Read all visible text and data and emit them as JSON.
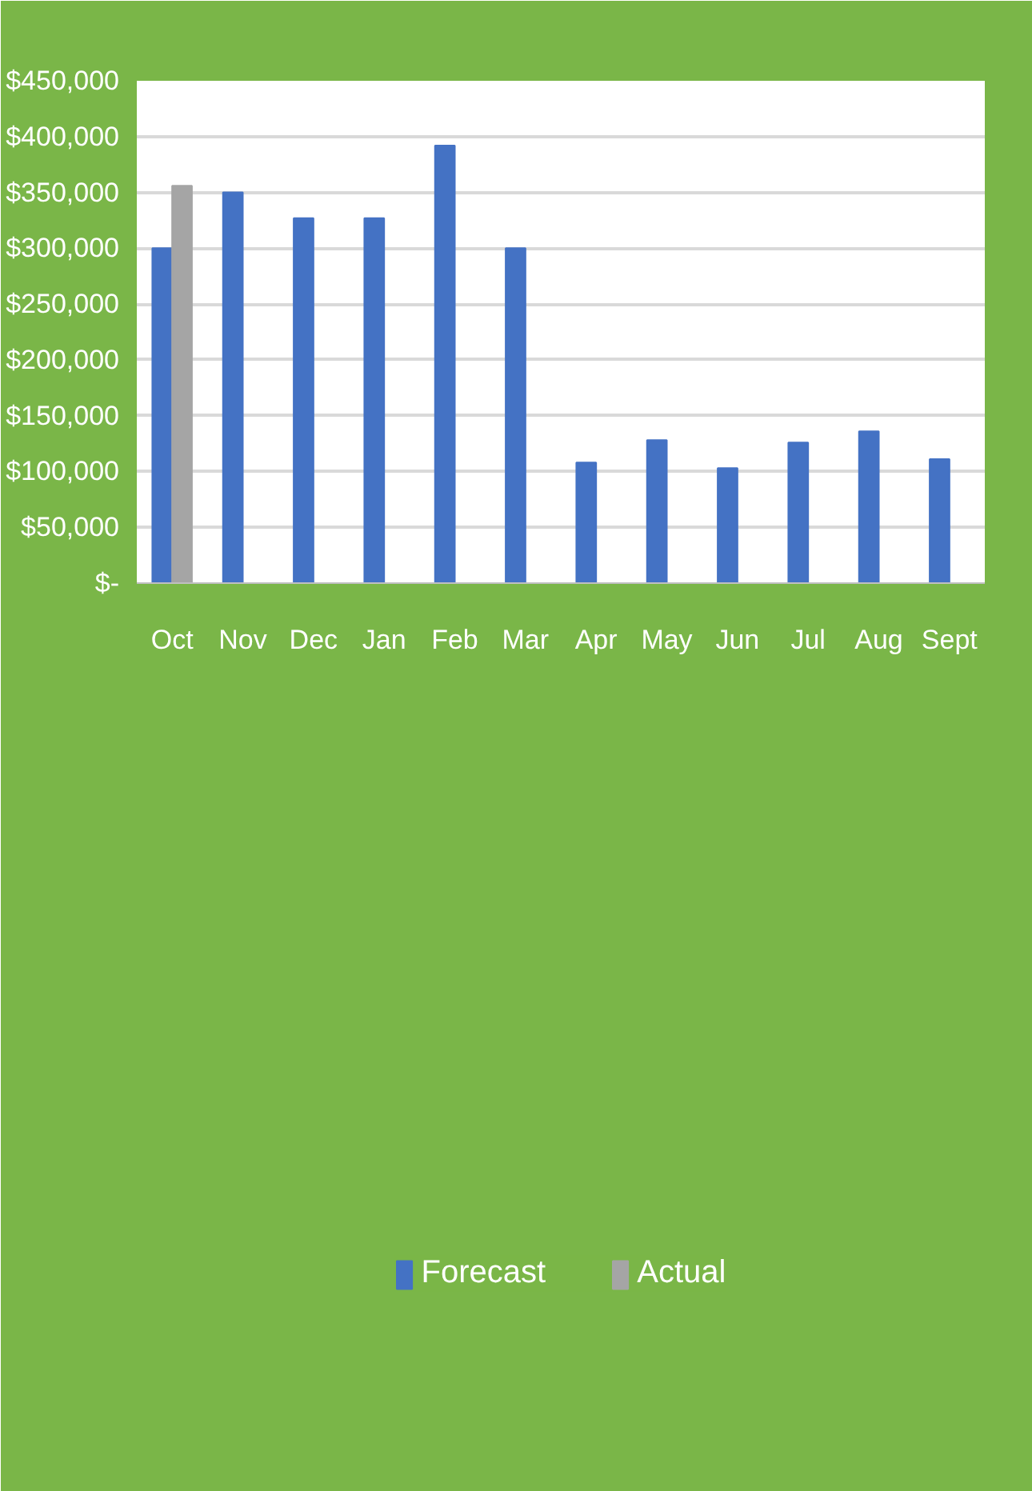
{
  "chart_data": {
    "type": "bar",
    "categories": [
      "Oct",
      "Nov",
      "Dec",
      "Jan",
      "Feb",
      "Mar",
      "Apr",
      "May",
      "Jun",
      "Jul",
      "Aug",
      "Sept"
    ],
    "series": [
      {
        "name": "Forecast",
        "color": "#4472c4",
        "values": [
          300000,
          350000,
          327000,
          327000,
          392000,
          300000,
          108000,
          128000,
          103000,
          126000,
          136000,
          111000
        ]
      },
      {
        "name": "Actual",
        "color": "#a5a5a5",
        "values": [
          356000,
          null,
          null,
          null,
          null,
          null,
          null,
          null,
          null,
          null,
          null,
          null
        ]
      }
    ],
    "ylim": [
      0,
      450000
    ],
    "yticks": [
      {
        "value": 0,
        "label": "$-"
      },
      {
        "value": 50000,
        "label": "$50,000"
      },
      {
        "value": 100000,
        "label": "$100,000"
      },
      {
        "value": 150000,
        "label": "$150,000"
      },
      {
        "value": 200000,
        "label": "$200,000"
      },
      {
        "value": 250000,
        "label": "$250,000"
      },
      {
        "value": 300000,
        "label": "$300,000"
      },
      {
        "value": 350000,
        "label": "$350,000"
      },
      {
        "value": 400000,
        "label": "$400,000"
      },
      {
        "value": 450000,
        "label": "$450,000"
      }
    ],
    "grid": "y",
    "legend": "bottom"
  }
}
